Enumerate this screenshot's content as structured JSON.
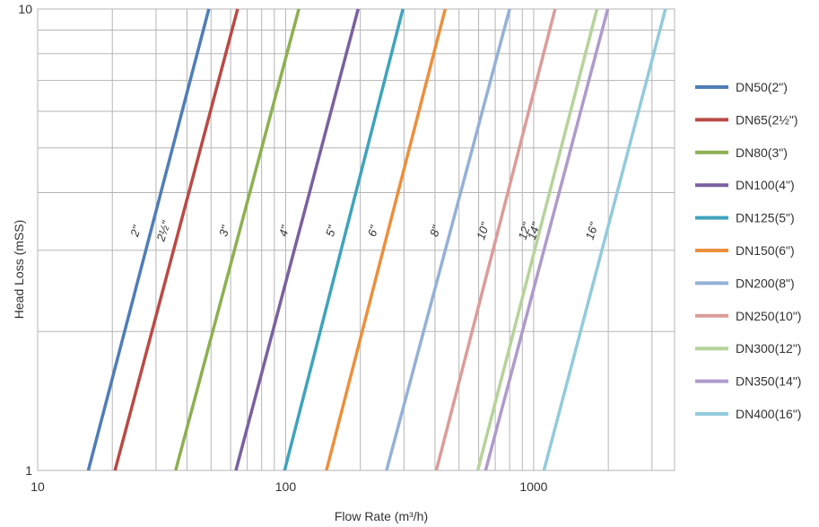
{
  "chart_data": {
    "type": "line",
    "xscale": "log",
    "yscale": "log",
    "xlim": [
      10,
      3700
    ],
    "ylim": [
      1,
      10
    ],
    "grid": true,
    "legend_position": "right",
    "xlabel": "Flow Rate (m³/h)",
    "ylabel": "Head Loss (mSS)",
    "x_ticks": [
      {
        "value": 10,
        "label": "10"
      },
      {
        "value": 100,
        "label": "100"
      },
      {
        "value": 1000,
        "label": "1000"
      }
    ],
    "y_ticks": [
      {
        "value": 1,
        "label": "1"
      },
      {
        "value": 10,
        "label": "10"
      }
    ],
    "series": [
      {
        "name": "DN50(2\")",
        "size_label": "2\"",
        "color": "#4f7db7",
        "x": [
          16,
          49
        ],
        "y": [
          1,
          10
        ]
      },
      {
        "name": "DN65(2½\")",
        "size_label": "2½\"",
        "color": "#b94a45",
        "x": [
          20.5,
          64
        ],
        "y": [
          1,
          10
        ]
      },
      {
        "name": "DN80(3\")",
        "size_label": "3\"",
        "color": "#8cb050",
        "x": [
          36,
          113
        ],
        "y": [
          1,
          10
        ]
      },
      {
        "name": "DN100(4\")",
        "size_label": "4\"",
        "color": "#7a60a0",
        "x": [
          63,
          196
        ],
        "y": [
          1,
          10
        ]
      },
      {
        "name": "DN125(5\")",
        "size_label": "5\"",
        "color": "#3fa3bd",
        "x": [
          99,
          297
        ],
        "y": [
          1,
          10
        ]
      },
      {
        "name": "DN150(6\")",
        "size_label": "6\"",
        "color": "#ec8f3c",
        "x": [
          146,
          440
        ],
        "y": [
          1,
          10
        ]
      },
      {
        "name": "DN200(8\")",
        "size_label": "8\"",
        "color": "#94b1d6",
        "x": [
          255,
          800
        ],
        "y": [
          1,
          10
        ]
      },
      {
        "name": "DN250(10\")",
        "size_label": "10\"",
        "color": "#dc9c98",
        "x": [
          405,
          1220
        ],
        "y": [
          1,
          10
        ]
      },
      {
        "name": "DN300(12\")",
        "size_label": "12\"",
        "color": "#b6d39a",
        "x": [
          595,
          1800
        ],
        "y": [
          1,
          10
        ]
      },
      {
        "name": "DN350(14\")",
        "size_label": "14\"",
        "color": "#ae9bcb",
        "x": [
          640,
          1990
        ],
        "y": [
          1,
          10
        ]
      },
      {
        "name": "DN400(16\")",
        "size_label": "16\"",
        "color": "#92cbdc",
        "x": [
          1100,
          3400
        ],
        "y": [
          1,
          10
        ]
      }
    ]
  }
}
